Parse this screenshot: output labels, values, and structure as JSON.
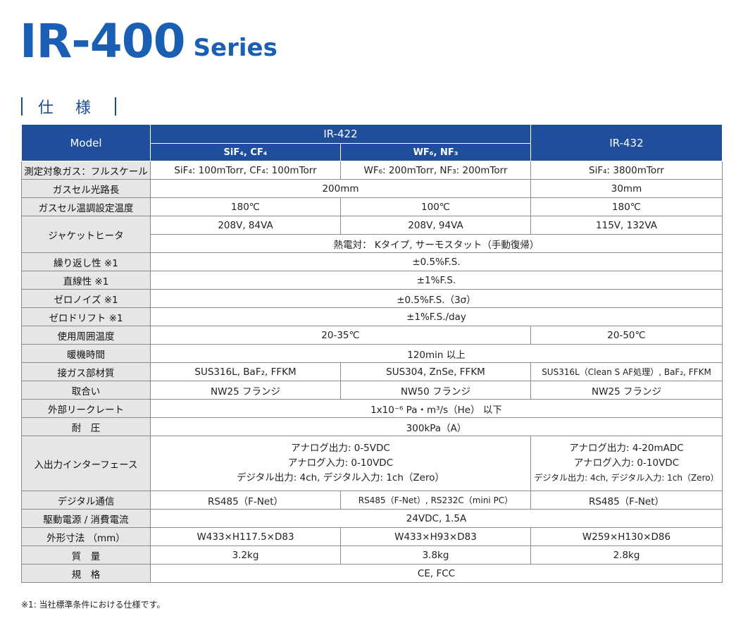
{
  "title": {
    "main": "IR-400",
    "sub": "Series"
  },
  "section": "仕 様",
  "header": {
    "model": "Model",
    "ir422": "IR-422",
    "ir432": "IR-432",
    "sub1": "SiF₄, CF₄",
    "sub2": "WF₆, NF₃"
  },
  "rows": {
    "range": {
      "label": "測定対象ガス：フルスケール",
      "a": "SiF₄: 100mTorr, CF₄: 100mTorr",
      "b": "WF₆: 200mTorr, NF₃: 200mTorr",
      "c": "SiF₄: 3800mTorr"
    },
    "path": {
      "label": "ガスセル光路長",
      "ab": "200mm",
      "c": "30mm"
    },
    "temp": {
      "label": "ガスセル温調設定温度",
      "a": "180℃",
      "b": "100℃",
      "c": "180℃"
    },
    "heater": {
      "label": "ジャケットヒータ",
      "a": "208V, 84VA",
      "b": "208V, 94VA",
      "c": "115V, 132VA",
      "all": "熱電対： Kタイプ, サーモスタット（手動復帰）"
    },
    "repeat": {
      "label": "繰り返し性 ※1",
      "all": "±0.5%F.S."
    },
    "linear": {
      "label": "直線性 ※1",
      "all": "±1%F.S."
    },
    "noise": {
      "label": "ゼロノイズ ※1",
      "all": "±0.5%F.S.（3σ）"
    },
    "drift": {
      "label": "ゼロドリフト ※1",
      "all": "±1%F.S./day"
    },
    "ambient": {
      "label": "使用周囲温度",
      "ab": "20-35℃",
      "c": "20-50℃"
    },
    "warmup": {
      "label": "暖機時間",
      "all": "120min 以上"
    },
    "material": {
      "label": "接ガス部材質",
      "a": "SUS316L, BaF₂, FFKM",
      "b": "SUS304, ZnSe, FFKM",
      "c": "SUS316L（Clean S AF処理）, BaF₂, FFKM"
    },
    "mount": {
      "label": "取合い",
      "a": "NW25 フランジ",
      "b": "NW50 フランジ",
      "c": "NW25 フランジ"
    },
    "leak": {
      "label": "外部リークレート",
      "all": "1x10⁻⁶ Pa・m³/s（He） 以下"
    },
    "pressure": {
      "label": "耐　圧",
      "all": "300kPa（A）"
    },
    "io": {
      "label": "入出力インターフェース",
      "ab": [
        "アナログ出力: 0-5VDC",
        "アナログ入力: 0-10VDC",
        "デジタル出力: 4ch, デジタル入力: 1ch（Zero）"
      ],
      "c": [
        "アナログ出力: 4-20mADC",
        "アナログ入力: 0-10VDC",
        "デジタル出力: 4ch, デジタル入力: 1ch（Zero）"
      ]
    },
    "comm": {
      "label": "デジタル通信",
      "a": "RS485（F-Net）",
      "b": "RS485（F-Net）, RS232C（mini PC）",
      "c": "RS485（F-Net）"
    },
    "power": {
      "label": "駆動電源 / 消費電流",
      "all": "24VDC, 1.5A"
    },
    "dims": {
      "label": "外形寸法 （mm）",
      "a": "W433×H117.5×D83",
      "b": "W433×H93×D83",
      "c": "W259×H130×D86"
    },
    "mass": {
      "label": "質　量",
      "a": "3.2kg",
      "b": "3.8kg",
      "c": "2.8kg"
    },
    "standard": {
      "label": "規　格",
      "all": "CE, FCC"
    }
  },
  "note": "※1: 当社標準条件における仕様です。"
}
